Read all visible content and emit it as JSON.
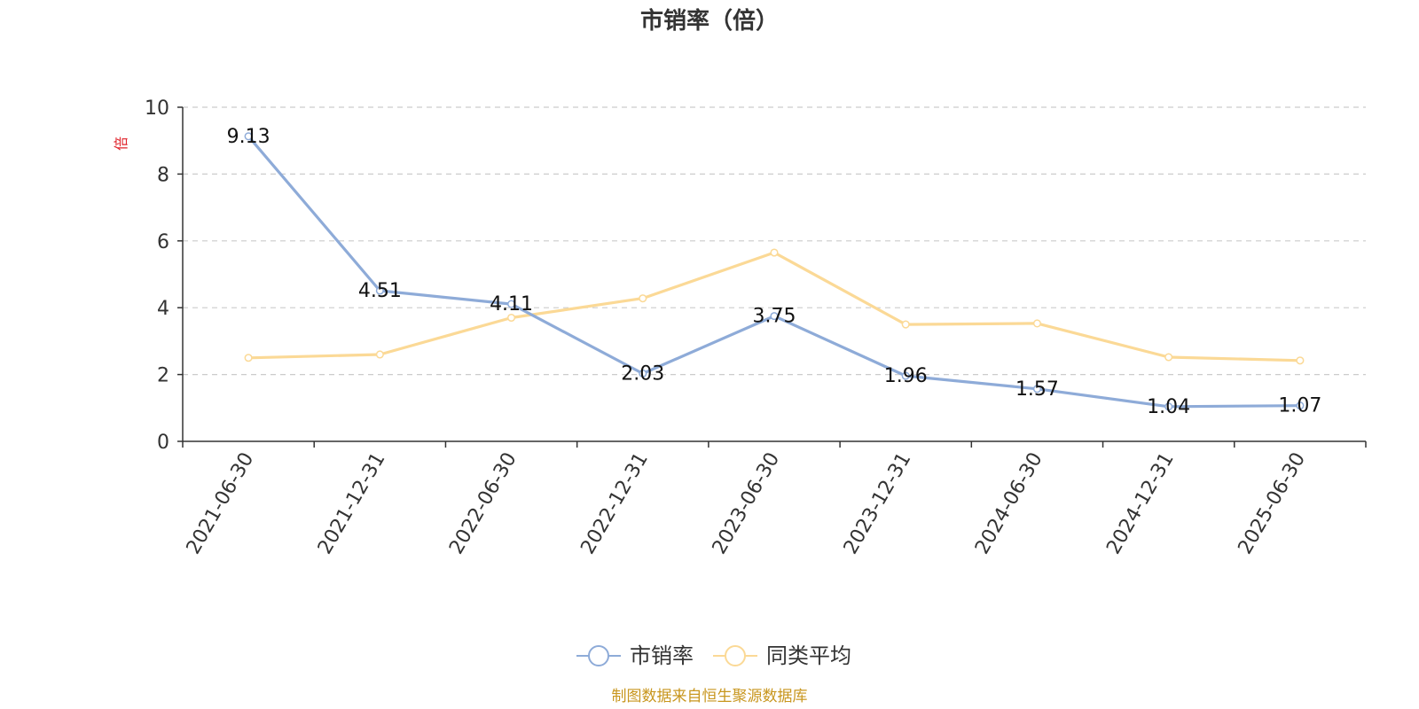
{
  "chart_data": {
    "type": "line",
    "title": "市销率（倍）",
    "ylabel": "倍",
    "xlabel": "",
    "categories": [
      "2021-06-30",
      "2021-12-31",
      "2022-06-30",
      "2022-12-31",
      "2023-06-30",
      "2023-12-31",
      "2024-06-30",
      "2024-12-31",
      "2025-06-30"
    ],
    "series": [
      {
        "name": "市销率",
        "color": "#8eabd8",
        "values": [
          9.13,
          4.51,
          4.11,
          2.03,
          3.75,
          1.96,
          1.57,
          1.04,
          1.07
        ],
        "labels": [
          "9.13",
          "4.51",
          "4.11",
          "2.03",
          "3.75",
          "1.96",
          "1.57",
          "1.04",
          "1.07"
        ]
      },
      {
        "name": "同类平均",
        "color": "#fbd996",
        "values": [
          2.5,
          2.6,
          3.7,
          4.28,
          5.65,
          3.5,
          3.53,
          2.52,
          2.42
        ]
      }
    ],
    "ylim": [
      0,
      10
    ],
    "yticks": [
      "0",
      "2",
      "4",
      "6",
      "8",
      "10"
    ],
    "grid": true,
    "legend_position": "bottom-center"
  },
  "footer": {
    "source": "制图数据来自恒生聚源数据库"
  },
  "colors": {
    "axis": "#333333",
    "grid": "#cccccc",
    "title": "#333333",
    "ylabel": "#e0232b",
    "source": "#c8961e"
  }
}
